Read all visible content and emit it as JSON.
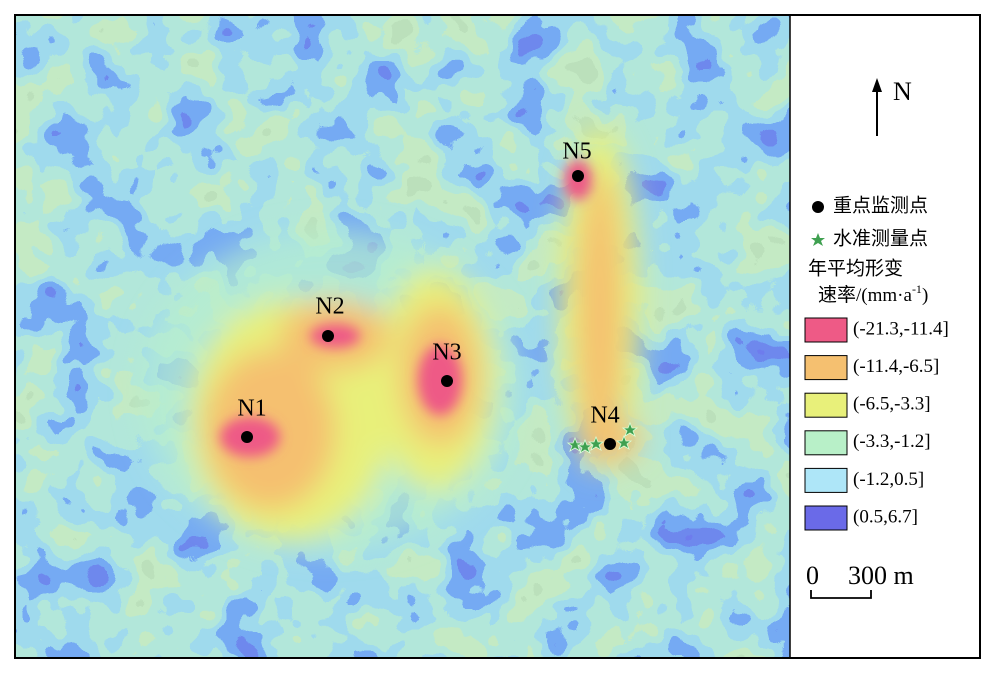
{
  "north": "N",
  "points": [
    {
      "label": "N1"
    },
    {
      "label": "N2"
    },
    {
      "label": "N3"
    },
    {
      "label": "N4"
    },
    {
      "label": "N5"
    }
  ],
  "legend": {
    "key_point": "重点监测点",
    "level_point": "水准测量点",
    "title_line1": "年平均形变",
    "title_line2": "速率/(mm·a",
    "title_sup": "-1",
    "title_end": ")",
    "classes": [
      {
        "label": "(-21.3,-11.4]",
        "color": "#ee5a86"
      },
      {
        "label": "(-11.4,-6.5]",
        "color": "#f5c070"
      },
      {
        "label": "(-6.5,-3.3]",
        "color": "#e8f07a"
      },
      {
        "label": "(-3.3,-1.2]",
        "color": "#b8f0c8"
      },
      {
        "label": "(-1.2,0.5]",
        "color": "#aee6f8"
      },
      {
        "label": "(0.5,6.7]",
        "color": "#6a6ae8"
      }
    ]
  },
  "scale": {
    "zero": "0",
    "distance": "300 m"
  }
}
